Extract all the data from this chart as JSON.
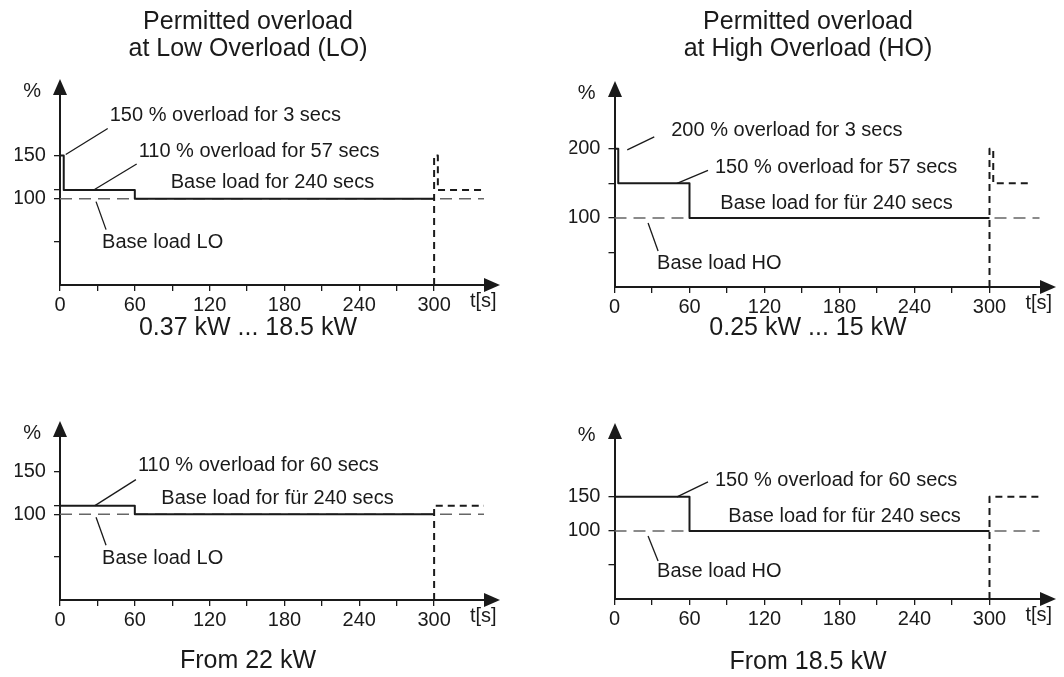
{
  "chart_data": [
    {
      "type": "step",
      "title": "Permitted overload\nat Low Overload (LO)",
      "xlabel": "t[s]",
      "ylabel": "%",
      "xlim": [
        0,
        340
      ],
      "xticks": [
        0,
        {
          "value": 30,
          "label": null
        },
        60,
        {
          "value": 90,
          "label": null
        },
        120,
        {
          "value": 150,
          "label": null
        },
        180,
        {
          "value": 210,
          "label": null
        },
        240,
        {
          "value": 270,
          "label": null
        },
        300
      ],
      "ylim": [
        0,
        220
      ],
      "yticks": [
        {
          "value": 50,
          "label": null
        },
        100,
        {
          "value": 110,
          "label": null
        },
        150
      ],
      "series": [
        {
          "color": "#1a1a1a",
          "x": [
            0,
            3,
            60,
            300
          ],
          "values": [
            150,
            110,
            100,
            100
          ]
        },
        {
          "color": "#1a1a1a",
          "line_style": "dashed",
          "x": [
            300,
            300,
            303,
            340
          ],
          "values": [
            0,
            150,
            110,
            110
          ]
        }
      ],
      "ref_lines": [
        {
          "axis": "y",
          "value": 100,
          "label": "Base load LO",
          "line_style": "dashed",
          "color": "#666666"
        }
      ],
      "annotations": [
        {
          "text": "150 % overload for 3 secs",
          "x": 3,
          "y": 150
        },
        {
          "text": "110 % overload for 57 secs",
          "x": 27,
          "y": 110
        },
        {
          "text": "Base load for 240 secs",
          "x": 180,
          "y": 100
        },
        "0.37 kW ... 18.5 kW"
      ]
    },
    {
      "type": "step",
      "title": "Permitted overload\nat High Overload (HO)",
      "xlabel": "t[s]",
      "ylabel": "%",
      "xlim": [
        0,
        340
      ],
      "xticks": [
        0,
        {
          "value": 30,
          "label": null
        },
        60,
        {
          "value": 90,
          "label": null
        },
        120,
        {
          "value": 150,
          "label": null
        },
        180,
        {
          "value": 210,
          "label": null
        },
        240,
        {
          "value": 270,
          "label": null
        },
        300
      ],
      "ylim": [
        0,
        275
      ],
      "yticks": [
        {
          "value": 50,
          "label": null
        },
        100,
        {
          "value": 150,
          "label": null
        },
        200
      ],
      "series": [
        {
          "color": "#1a1a1a",
          "x": [
            0,
            3,
            60,
            300
          ],
          "values": [
            200,
            150,
            100,
            100
          ]
        },
        {
          "color": "#1a1a1a",
          "line_style": "dashed",
          "x": [
            300,
            300,
            303,
            332
          ],
          "values": [
            0,
            200,
            150,
            150
          ]
        }
      ],
      "ref_lines": [
        {
          "axis": "y",
          "value": 100,
          "label": "Base load HO",
          "line_style": "dashed",
          "color": "#666666"
        }
      ],
      "annotations": [
        {
          "text": "200 % overload for 3 secs",
          "x": 3,
          "y": 200
        },
        {
          "text": "150 % overload for 57 secs",
          "x": 50,
          "y": 150
        },
        {
          "text": "Base load for für 240 secs",
          "x": 180,
          "y": 100
        },
        "0.25 kW ... 15 kW"
      ]
    },
    {
      "type": "step",
      "xlabel": "t[s]",
      "ylabel": "%",
      "xlim": [
        0,
        340
      ],
      "xticks": [
        0,
        {
          "value": 30,
          "label": null
        },
        60,
        {
          "value": 90,
          "label": null
        },
        120,
        {
          "value": 150,
          "label": null
        },
        180,
        {
          "value": 210,
          "label": null
        },
        240,
        {
          "value": 270,
          "label": null
        },
        300
      ],
      "ylim": [
        0,
        190
      ],
      "yticks": [
        {
          "value": 50,
          "label": null
        },
        100,
        {
          "value": 110,
          "label": null
        },
        150
      ],
      "series": [
        {
          "color": "#1a1a1a",
          "x": [
            0,
            60,
            300
          ],
          "values": [
            110,
            100,
            100
          ]
        },
        {
          "color": "#1a1a1a",
          "line_style": "dashed",
          "x": [
            300,
            300,
            340
          ],
          "values": [
            0,
            110,
            110
          ]
        }
      ],
      "ref_lines": [
        {
          "axis": "y",
          "value": 100,
          "label": "Base load LO",
          "line_style": "dashed",
          "color": "#666666"
        }
      ],
      "annotations": [
        {
          "text": "110 % overload for 60 secs",
          "x": 28,
          "y": 110
        },
        {
          "text": "Base load for für 240 secs",
          "x": 180,
          "y": 100
        },
        "From 22 kW"
      ]
    },
    {
      "type": "step",
      "xlabel": "t[s]",
      "ylabel": "%",
      "xlim": [
        0,
        340
      ],
      "xticks": [
        0,
        {
          "value": 30,
          "label": null
        },
        60,
        {
          "value": 90,
          "label": null
        },
        120,
        {
          "value": 150,
          "label": null
        },
        180,
        {
          "value": 210,
          "label": null
        },
        240,
        {
          "value": 270,
          "label": null
        },
        300
      ],
      "ylim": [
        0,
        235
      ],
      "yticks": [
        {
          "value": 50,
          "label": null
        },
        100,
        150
      ],
      "series": [
        {
          "color": "#1a1a1a",
          "x": [
            0,
            60,
            300
          ],
          "values": [
            150,
            100,
            100
          ]
        },
        {
          "color": "#1a1a1a",
          "line_style": "dashed",
          "x": [
            300,
            300,
            340
          ],
          "values": [
            0,
            150,
            150
          ]
        }
      ],
      "ref_lines": [
        {
          "axis": "y",
          "value": 100,
          "label": "Base load HO",
          "line_style": "dashed",
          "color": "#666666"
        }
      ],
      "annotations": [
        {
          "text": "150 % overload for 60 secs",
          "x": 50,
          "y": 150
        },
        {
          "text": "Base load for für 240 secs",
          "x": 180,
          "y": 100
        },
        "From 18.5 kW"
      ]
    }
  ]
}
